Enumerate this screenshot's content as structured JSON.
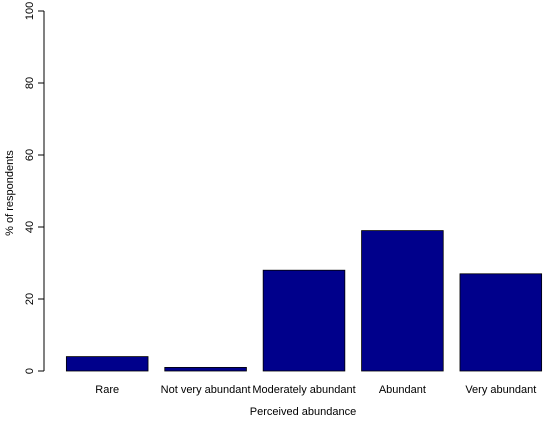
{
  "chart_data": {
    "type": "bar",
    "categories": [
      "Rare",
      "Not very abundant",
      "Moderately abundant",
      "Abundant",
      "Very abundant"
    ],
    "values": [
      4,
      1,
      28,
      39,
      27
    ],
    "xlabel": "Perceived abundance",
    "ylabel": "% of respondents",
    "ylim": [
      0,
      100
    ],
    "yticks": [
      0,
      20,
      40,
      60,
      80,
      100
    ],
    "grid": false,
    "legend": "none",
    "bar_color": "#00008B"
  }
}
